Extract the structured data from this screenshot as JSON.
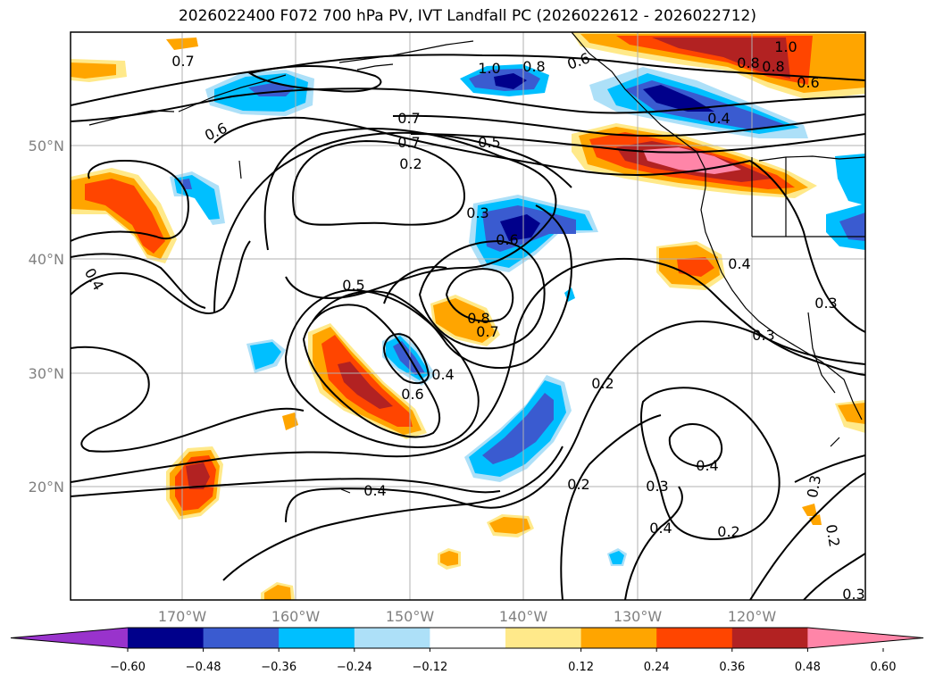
{
  "title": "2026022400 F072 700 hPa PV, IVT Landfall PC (2026022612 - 2026022712)",
  "map": {
    "latitude_labels": [
      "50°N",
      "40°N",
      "30°N",
      "20°N"
    ],
    "longitude_labels": [
      "170°W",
      "160°W",
      "150°W",
      "140°W",
      "130°W",
      "120°W"
    ],
    "contour_labels": [
      "0.7",
      "1.0",
      "0.8",
      "0.6",
      "1.0",
      "0.7",
      "0.8",
      "0.8",
      "0.6",
      "0.4",
      "0.6",
      "0.7",
      "0.5",
      "0.2",
      "0.3",
      "0.6",
      "0.4",
      "0.4",
      "0.5",
      "0.8",
      "0.7",
      "0.4",
      "0.6",
      "0.2",
      "0.3",
      "0.3",
      "0.4",
      "0.2",
      "0.3",
      "0.4",
      "0.2",
      "0.3",
      "0.2",
      "0.4",
      "0.3"
    ]
  },
  "colorbar": {
    "tick_labels": [
      "−0.60",
      "−0.48",
      "−0.36",
      "−0.24",
      "−0.12",
      "0.12",
      "0.24",
      "0.36",
      "0.48",
      "0.60"
    ],
    "colors": [
      "#9933cc",
      "#00008b",
      "#3a5bd0",
      "#00bfff",
      "#ade0f8",
      "#ffffff",
      "#ffe98a",
      "#ffa500",
      "#ff4500",
      "#b22222",
      "#ff85a8"
    ]
  }
}
